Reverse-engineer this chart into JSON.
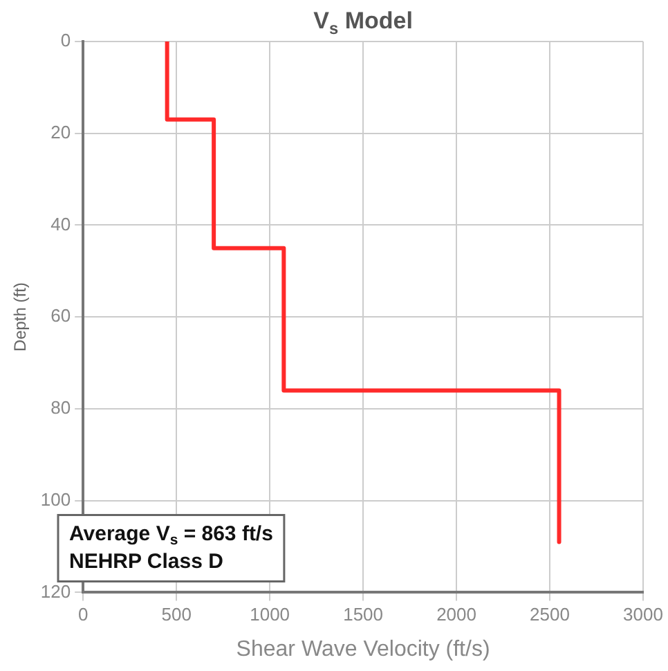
{
  "chart_data": {
    "type": "line",
    "title": "V$_{s}$ Model",
    "xlabel": "Shear Wave Velocity (ft/s)",
    "ylabel": "Depth (ft)",
    "x": [
      450,
      450,
      700,
      700,
      1075,
      1075,
      2550,
      2550
    ],
    "series": [
      {
        "color": "#ff2a2a",
        "values": [
          0,
          17,
          17,
          45,
          45,
          76,
          76,
          109
        ]
      }
    ],
    "xlim": [
      0,
      3000
    ],
    "xticks": [
      0,
      500,
      1000,
      1500,
      2000,
      2500,
      3000
    ],
    "ylim": [
      120,
      0
    ],
    "yticks": [
      0,
      20,
      40,
      60,
      80,
      100,
      120
    ],
    "grid": true,
    "legend": false,
    "marker": "none",
    "line_style": "solid",
    "annotations": [
      "Average V$_{s}$ = 863 ft/s",
      "NEHRP Class D"
    ]
  }
}
